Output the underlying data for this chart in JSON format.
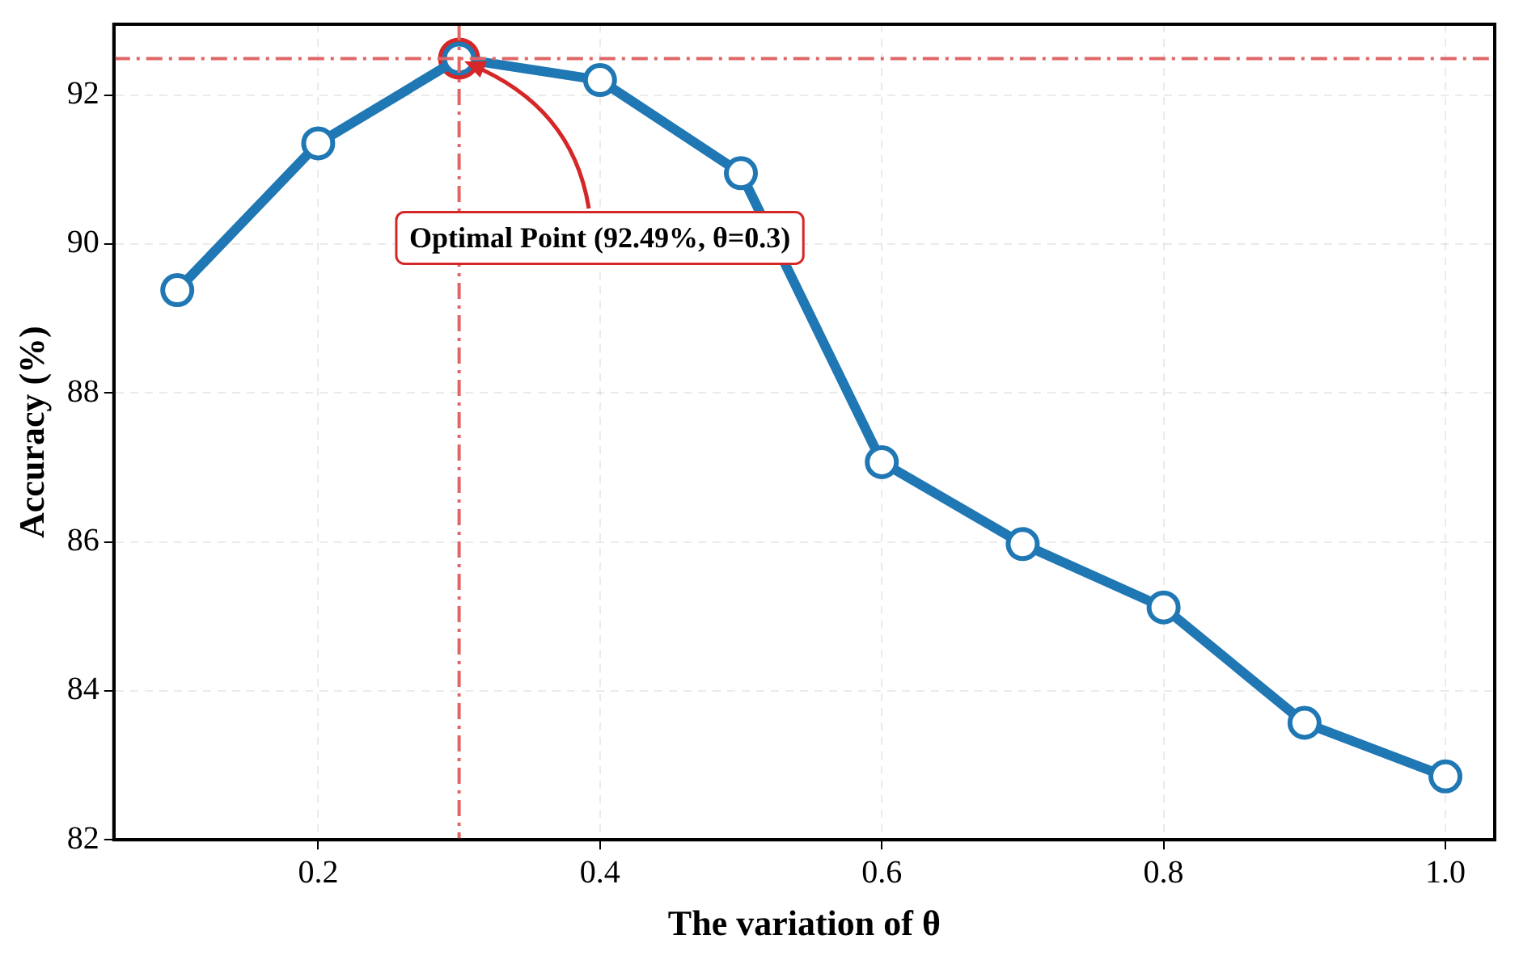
{
  "chart_data": {
    "type": "line",
    "xlabel": "The variation of θ",
    "ylabel": "Accuracy (%)",
    "x": [
      0.1,
      0.2,
      0.3,
      0.4,
      0.5,
      0.6,
      0.7,
      0.8,
      0.9,
      1.0
    ],
    "series": [
      {
        "type": "line",
        "color": "#1f77b4",
        "values": [
          89.38,
          91.35,
          92.49,
          92.2,
          90.95,
          87.07,
          85.97,
          85.12,
          83.57,
          82.85
        ]
      },
      {
        "type": "scatter",
        "color": "#d62728",
        "x": [
          0.3
        ],
        "values": [
          92.49
        ]
      }
    ],
    "xlim": [
      0.055,
      1.035
    ],
    "xticks": [
      0.2,
      0.4,
      0.6,
      0.8,
      {
        "value": 1,
        "label": "1.0"
      }
    ],
    "ylim": [
      82,
      92.95
    ],
    "yticks": [
      82,
      84,
      86,
      88,
      90,
      92
    ],
    "ref_lines": [
      {
        "axis": "x",
        "value": 0.3,
        "color": "#e06666",
        "line_style": "dashdot"
      },
      {
        "axis": "y",
        "value": 92.49,
        "color": "#e06666",
        "line_style": "dashdot"
      }
    ],
    "annotations": [
      {
        "text": "Optimal Point (92.49%, θ=0.3)",
        "x": 0.3,
        "y": 92.49
      }
    ],
    "grid": true,
    "legend": false,
    "marker": "circle"
  }
}
